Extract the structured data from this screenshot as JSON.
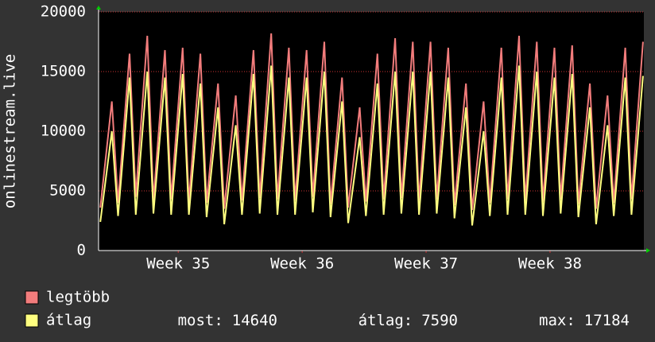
{
  "chart_data": {
    "type": "line",
    "y_label": "onlinestream.live",
    "x": [
      0.1,
      0.75,
      1.1,
      1.75,
      2.1,
      2.75,
      3.1,
      3.75,
      4.1,
      4.75,
      5.1,
      5.75,
      6.1,
      6.75,
      7.1,
      7.75,
      8.1,
      8.75,
      9.1,
      9.75,
      10.1,
      10.75,
      11.1,
      11.75,
      12.1,
      12.75,
      13.1,
      13.75,
      14.1,
      14.75,
      15.1,
      15.75,
      16.1,
      16.75,
      17.1,
      17.75,
      18.1,
      18.75,
      19.1,
      19.75,
      20.1,
      20.75,
      21.1,
      21.75,
      22.1,
      22.75,
      23.1,
      23.75,
      24.1,
      24.75,
      25.1,
      25.75,
      26.1,
      26.75,
      27.1,
      27.75,
      28.1,
      28.75,
      29.1,
      29.75,
      30.1,
      30.75
    ],
    "series": [
      {
        "name": "legtöbb",
        "color": "#f27c7c",
        "values": [
          3600,
          12500,
          4000,
          16500,
          4500,
          18000,
          4200,
          16800,
          4300,
          17000,
          4100,
          16500,
          4000,
          14000,
          3500,
          13000,
          4200,
          16800,
          4400,
          18200,
          4300,
          17000,
          4200,
          16800,
          4500,
          17500,
          3900,
          14500,
          3600,
          12000,
          4100,
          16500,
          4300,
          17800,
          4400,
          17500,
          4200,
          17500,
          4300,
          17000,
          3800,
          14000,
          3400,
          12500,
          4000,
          17000,
          4300,
          18000,
          4200,
          17500,
          4100,
          17000,
          4300,
          17200,
          3900,
          14000,
          3500,
          13000,
          4000,
          17000,
          4300,
          17500
        ]
      },
      {
        "name": "átlag",
        "color": "#ffff80",
        "values": [
          2400,
          10000,
          2900,
          14500,
          3000,
          15000,
          3100,
          14500,
          3000,
          14800,
          3000,
          14000,
          2800,
          12000,
          2200,
          10500,
          3000,
          14800,
          3100,
          15500,
          3000,
          14500,
          3000,
          14500,
          3200,
          15000,
          2800,
          12500,
          2300,
          9500,
          2900,
          14000,
          3000,
          15000,
          3100,
          15000,
          3000,
          15000,
          3100,
          14500,
          2700,
          12000,
          2100,
          10000,
          2900,
          14500,
          3000,
          15500,
          3000,
          15000,
          2900,
          14500,
          3100,
          14800,
          2800,
          12000,
          2200,
          10500,
          2900,
          14500,
          3000,
          14640
        ]
      }
    ],
    "xlim": [
      0,
      30.8
    ],
    "xticks": [
      {
        "value": 4.5,
        "label": "Week 35"
      },
      {
        "value": 11.5,
        "label": "Week 36"
      },
      {
        "value": 18.5,
        "label": "Week 37"
      },
      {
        "value": 25.5,
        "label": "Week 38"
      }
    ],
    "ylim": [
      0,
      20000
    ],
    "yticks": [
      0,
      5000,
      10000,
      15000,
      20000
    ],
    "grid": true,
    "stats": [
      {
        "label": "most:",
        "value": 14640
      },
      {
        "label": "átlag:",
        "value": 7590
      },
      {
        "label": "max:",
        "value": 17184
      }
    ]
  }
}
